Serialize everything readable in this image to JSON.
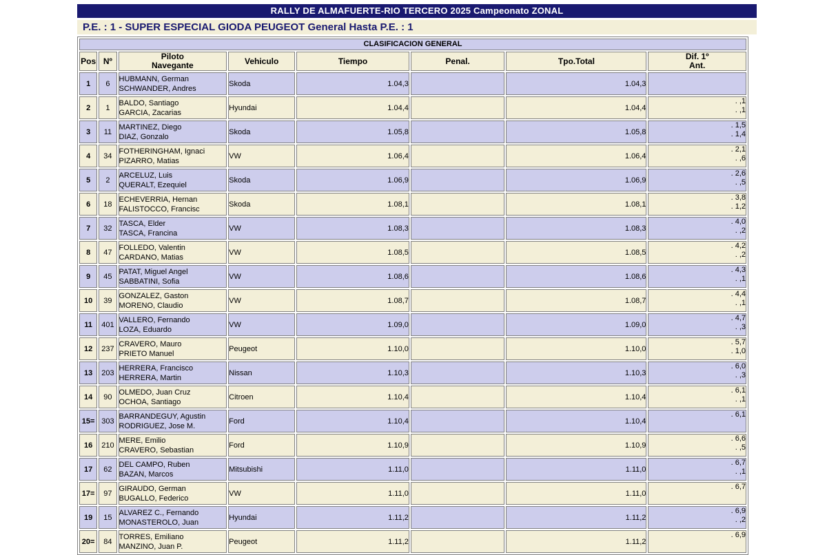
{
  "title": "RALLY DE ALMAFUERTE-RIO TERCERO 2025 Campeonato ZONAL",
  "subtitle": "P.E. : 1 - SUPER ESPECIAL GIODA PEUGEOT General Hasta P.E. : 1",
  "section_header": "CLASIFICACION GENERAL",
  "colors": {
    "navy": "#191970",
    "lavender_row": "#cdcdec",
    "cream_row": "#f3efd8",
    "border_gray": "#808080",
    "title_text": "#ffffff"
  },
  "columns": {
    "pos": "Pos",
    "num": "Nº",
    "pilot_line1": "Piloto",
    "pilot_line2": "Navegante",
    "vehicle": "Vehiculo",
    "time": "Tiempo",
    "penalty": "Penal.",
    "total": "Tpo.Total",
    "dif_line1": "Dif. 1º",
    "dif_line2": "Ant."
  },
  "chart_data": {
    "type": "table",
    "title": "CLASIFICACION GENERAL",
    "categories": [
      "Pos",
      "Nº",
      "Piloto / Navegante",
      "Vehiculo",
      "Tiempo",
      "Penal.",
      "Tpo.Total",
      "Dif. 1º / Ant."
    ]
  },
  "rows": [
    {
      "pos": "1",
      "num": "6",
      "driver": "HUBMANN, German",
      "codriver": "SCHWANDER, Andres",
      "vehicle": "Skoda",
      "time": "1.04,3",
      "penalty": "",
      "total": "1.04,3",
      "dif1": "",
      "dif2": ""
    },
    {
      "pos": "2",
      "num": "1",
      "driver": "BALDO, Santiago",
      "codriver": "GARCIA, Zacarias",
      "vehicle": "Hyundai",
      "time": "1.04,4",
      "penalty": "",
      "total": "1.04,4",
      "dif1": ". ,1",
      "dif2": ". ,1"
    },
    {
      "pos": "3",
      "num": "11",
      "driver": "MARTINEZ, Diego",
      "codriver": "DIAZ, Gonzalo",
      "vehicle": "Skoda",
      "time": "1.05,8",
      "penalty": "",
      "total": "1.05,8",
      "dif1": ". 1,5",
      "dif2": ". 1,4"
    },
    {
      "pos": "4",
      "num": "34",
      "driver": "FOTHERINGHAM, Ignaci",
      "codriver": "PIZARRO, Matias",
      "vehicle": "VW",
      "time": "1.06,4",
      "penalty": "",
      "total": "1.06,4",
      "dif1": ". 2,1",
      "dif2": ". ,6"
    },
    {
      "pos": "5",
      "num": "2",
      "driver": "ARCELUZ, Luis",
      "codriver": "QUERALT, Ezequiel",
      "vehicle": "Skoda",
      "time": "1.06,9",
      "penalty": "",
      "total": "1.06,9",
      "dif1": ". 2,6",
      "dif2": ". ,5"
    },
    {
      "pos": "6",
      "num": "18",
      "driver": "ECHEVERRIA, Hernan",
      "codriver": "FALISTOCCO, Francisc",
      "vehicle": "Skoda",
      "time": "1.08,1",
      "penalty": "",
      "total": "1.08,1",
      "dif1": ". 3,8",
      "dif2": ". 1,2"
    },
    {
      "pos": "7",
      "num": "32",
      "driver": "TASCA, Elder",
      "codriver": "TASCA, Francina",
      "vehicle": "VW",
      "time": "1.08,3",
      "penalty": "",
      "total": "1.08,3",
      "dif1": ". 4,0",
      "dif2": ". ,2"
    },
    {
      "pos": "8",
      "num": "47",
      "driver": "FOLLEDO, Valentin",
      "codriver": "CARDANO, Matias",
      "vehicle": "VW",
      "time": "1.08,5",
      "penalty": "",
      "total": "1.08,5",
      "dif1": ". 4,2",
      "dif2": ". ,2"
    },
    {
      "pos": "9",
      "num": "45",
      "driver": "PATAT, Miguel Angel",
      "codriver": "SABBATINI, Sofia",
      "vehicle": "VW",
      "time": "1.08,6",
      "penalty": "",
      "total": "1.08,6",
      "dif1": ". 4,3",
      "dif2": ". ,1"
    },
    {
      "pos": "10",
      "num": "39",
      "driver": "GONZALEZ, Gaston",
      "codriver": "MORENO, Claudio",
      "vehicle": "VW",
      "time": "1.08,7",
      "penalty": "",
      "total": "1.08,7",
      "dif1": ". 4,4",
      "dif2": ". ,1"
    },
    {
      "pos": "11",
      "num": "401",
      "driver": "VALLERO, Fernando",
      "codriver": "LOZA, Eduardo",
      "vehicle": "VW",
      "time": "1.09,0",
      "penalty": "",
      "total": "1.09,0",
      "dif1": ". 4,7",
      "dif2": ". ,3"
    },
    {
      "pos": "12",
      "num": "237",
      "driver": "CRAVERO, Mauro",
      "codriver": "PRIETO Manuel",
      "vehicle": "Peugeot",
      "time": "1.10,0",
      "penalty": "",
      "total": "1.10,0",
      "dif1": ". 5,7",
      "dif2": ". 1,0"
    },
    {
      "pos": "13",
      "num": "203",
      "driver": "HERRERA, Francisco",
      "codriver": "HERRERA, Martin",
      "vehicle": "Nissan",
      "time": "1.10,3",
      "penalty": "",
      "total": "1.10,3",
      "dif1": ". 6,0",
      "dif2": ". ,3"
    },
    {
      "pos": "14",
      "num": "90",
      "driver": "OLMEDO, Juan Cruz",
      "codriver": "OCHOA, Santiago",
      "vehicle": "Citroen",
      "time": "1.10,4",
      "penalty": "",
      "total": "1.10,4",
      "dif1": ". 6,1",
      "dif2": ". ,1"
    },
    {
      "pos": "15=",
      "num": "303",
      "driver": "BARRANDEGUY, Agustin",
      "codriver": "RODRIGUEZ, Jose M.",
      "vehicle": "Ford",
      "time": "1.10,4",
      "penalty": "",
      "total": "1.10,4",
      "dif1": ". 6,1",
      "dif2": ""
    },
    {
      "pos": "16",
      "num": "210",
      "driver": "MERE, Emilio",
      "codriver": "CRAVERO, Sebastian",
      "vehicle": "Ford",
      "time": "1.10,9",
      "penalty": "",
      "total": "1.10,9",
      "dif1": ". 6,6",
      "dif2": ". ,5"
    },
    {
      "pos": "17",
      "num": "62",
      "driver": "DEL CAMPO, Ruben",
      "codriver": "BAZAN, Marcos",
      "vehicle": "Mitsubishi",
      "time": "1.11,0",
      "penalty": "",
      "total": "1.11,0",
      "dif1": ". 6,7",
      "dif2": ". ,1"
    },
    {
      "pos": "17=",
      "num": "97",
      "driver": "GIRAUDO, German",
      "codriver": "BUGALLO, Federico",
      "vehicle": "VW",
      "time": "1.11,0",
      "penalty": "",
      "total": "1.11,0",
      "dif1": ". 6,7",
      "dif2": ""
    },
    {
      "pos": "19",
      "num": "15",
      "driver": "ALVAREZ C., Fernando",
      "codriver": "MONASTEROLO, Juan",
      "vehicle": "Hyundai",
      "time": "1.11,2",
      "penalty": "",
      "total": "1.11,2",
      "dif1": ". 6,9",
      "dif2": ". ,2"
    },
    {
      "pos": "20=",
      "num": "84",
      "driver": "TORRES, Emiliano",
      "codriver": "MANZINO, Juan P.",
      "vehicle": "Peugeot",
      "time": "1.11,2",
      "penalty": "",
      "total": "1.11,2",
      "dif1": ". 6,9",
      "dif2": ""
    }
  ]
}
